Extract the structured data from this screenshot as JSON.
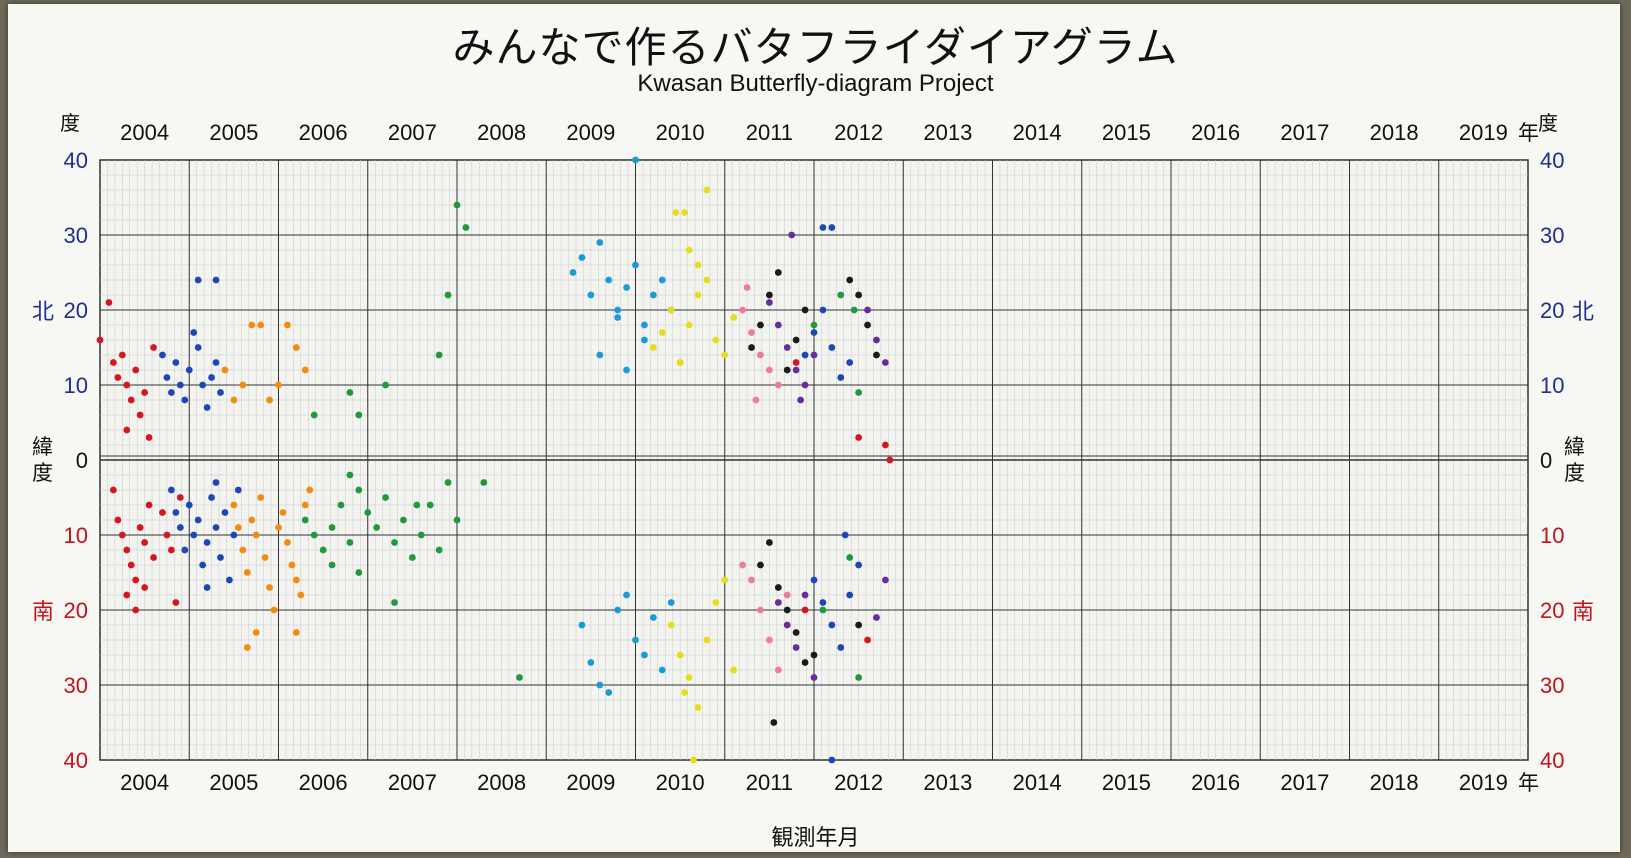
{
  "title": "みんなで作るバタフライダイアグラム",
  "subtitle": "Kwasan Butterfly-diagram Project",
  "xlabel": "観測年月",
  "year_suffix": "年",
  "degree_label": "度",
  "north_label": "北",
  "south_label": "南",
  "latitude_label": [
    "緯",
    "度"
  ],
  "colors": {
    "north_axis": "#1f2f8f",
    "south_axis": "#c0141c",
    "grid_major": "#333333",
    "grid_minor": "#c9c9c9"
  },
  "chart_data": {
    "type": "scatter",
    "title": "みんなで作るバタフライダイアグラム",
    "subtitle": "Kwasan Butterfly-diagram Project",
    "xlabel": "観測年月",
    "ylabel": "緯度",
    "xlim": [
      2004.0,
      2020.0
    ],
    "ylim": [
      -40,
      40
    ],
    "years": [
      "2004",
      "2005",
      "2006",
      "2007",
      "2008",
      "2009",
      "2010",
      "2011",
      "2012",
      "2013",
      "2014",
      "2015",
      "2016",
      "2017",
      "2018",
      "2019"
    ],
    "y_ticks_north": [
      "40",
      "30",
      "20",
      "10",
      "0"
    ],
    "y_ticks_south": [
      "10",
      "20",
      "30",
      "40"
    ],
    "grid": true,
    "series": [
      {
        "color": "#d6161e",
        "points": [
          [
            2004.0,
            16
          ],
          [
            2004.1,
            21
          ],
          [
            2004.15,
            13
          ],
          [
            2004.2,
            11
          ],
          [
            2004.25,
            14
          ],
          [
            2004.3,
            10
          ],
          [
            2004.35,
            8
          ],
          [
            2004.4,
            12
          ],
          [
            2004.45,
            6
          ],
          [
            2004.5,
            9
          ],
          [
            2004.55,
            3
          ],
          [
            2004.6,
            15
          ],
          [
            2004.3,
            4
          ],
          [
            2004.15,
            -4
          ],
          [
            2004.2,
            -8
          ],
          [
            2004.25,
            -10
          ],
          [
            2004.3,
            -12
          ],
          [
            2004.35,
            -14
          ],
          [
            2004.4,
            -16
          ],
          [
            2004.45,
            -9
          ],
          [
            2004.5,
            -11
          ],
          [
            2004.55,
            -6
          ],
          [
            2004.6,
            -13
          ],
          [
            2004.3,
            -18
          ],
          [
            2004.4,
            -20
          ],
          [
            2004.5,
            -17
          ],
          [
            2004.7,
            -7
          ],
          [
            2004.75,
            -10
          ],
          [
            2004.8,
            -12
          ],
          [
            2004.85,
            -19
          ],
          [
            2004.9,
            -5
          ]
        ]
      },
      {
        "color": "#1d47b8",
        "points": [
          [
            2004.7,
            14
          ],
          [
            2004.75,
            11
          ],
          [
            2004.8,
            9
          ],
          [
            2004.85,
            13
          ],
          [
            2004.9,
            10
          ],
          [
            2004.95,
            8
          ],
          [
            2005.0,
            12
          ],
          [
            2005.05,
            17
          ],
          [
            2005.1,
            15
          ],
          [
            2005.15,
            10
          ],
          [
            2005.2,
            7
          ],
          [
            2005.25,
            11
          ],
          [
            2005.3,
            13
          ],
          [
            2005.35,
            9
          ],
          [
            2005.1,
            24
          ],
          [
            2005.3,
            24
          ],
          [
            2004.8,
            -4
          ],
          [
            2004.85,
            -7
          ],
          [
            2004.9,
            -9
          ],
          [
            2004.95,
            -12
          ],
          [
            2005.0,
            -6
          ],
          [
            2005.05,
            -10
          ],
          [
            2005.1,
            -8
          ],
          [
            2005.15,
            -14
          ],
          [
            2005.2,
            -11
          ],
          [
            2005.25,
            -5
          ],
          [
            2005.3,
            -9
          ],
          [
            2005.35,
            -13
          ],
          [
            2005.4,
            -7
          ],
          [
            2005.45,
            -16
          ],
          [
            2005.5,
            -10
          ],
          [
            2005.55,
            -4
          ],
          [
            2005.2,
            -17
          ],
          [
            2005.3,
            -3
          ]
        ]
      },
      {
        "color": "#f08c10",
        "points": [
          [
            2005.4,
            12
          ],
          [
            2005.5,
            8
          ],
          [
            2005.6,
            10
          ],
          [
            2005.7,
            18
          ],
          [
            2005.8,
            18
          ],
          [
            2005.9,
            8
          ],
          [
            2006.0,
            10
          ],
          [
            2006.1,
            18
          ],
          [
            2006.2,
            15
          ],
          [
            2006.3,
            12
          ],
          [
            2005.5,
            -6
          ],
          [
            2005.55,
            -9
          ],
          [
            2005.6,
            -12
          ],
          [
            2005.65,
            -15
          ],
          [
            2005.7,
            -8
          ],
          [
            2005.75,
            -10
          ],
          [
            2005.8,
            -5
          ],
          [
            2005.85,
            -13
          ],
          [
            2005.9,
            -17
          ],
          [
            2005.95,
            -20
          ],
          [
            2006.0,
            -9
          ],
          [
            2006.05,
            -7
          ],
          [
            2006.1,
            -11
          ],
          [
            2006.15,
            -14
          ],
          [
            2006.2,
            -16
          ],
          [
            2006.25,
            -18
          ],
          [
            2006.3,
            -6
          ],
          [
            2006.35,
            -4
          ],
          [
            2005.65,
            -25
          ],
          [
            2006.2,
            -23
          ],
          [
            2005.75,
            -23
          ]
        ]
      },
      {
        "color": "#1f9a3a",
        "points": [
          [
            2006.4,
            6
          ],
          [
            2006.8,
            9
          ],
          [
            2007.2,
            10
          ],
          [
            2006.9,
            6
          ],
          [
            2008.0,
            34
          ],
          [
            2008.1,
            31
          ],
          [
            2007.8,
            14
          ],
          [
            2007.9,
            22
          ],
          [
            2006.3,
            -8
          ],
          [
            2006.4,
            -10
          ],
          [
            2006.5,
            -12
          ],
          [
            2006.6,
            -9
          ],
          [
            2006.7,
            -6
          ],
          [
            2006.8,
            -11
          ],
          [
            2006.9,
            -4
          ],
          [
            2007.0,
            -7
          ],
          [
            2007.1,
            -9
          ],
          [
            2007.2,
            -5
          ],
          [
            2007.3,
            -11
          ],
          [
            2007.4,
            -8
          ],
          [
            2007.5,
            -13
          ],
          [
            2007.6,
            -10
          ],
          [
            2007.7,
            -6
          ],
          [
            2007.8,
            -12
          ],
          [
            2007.9,
            -3
          ],
          [
            2008.0,
            -8
          ],
          [
            2008.3,
            -3
          ],
          [
            2006.8,
            -2
          ],
          [
            2006.9,
            -15
          ],
          [
            2007.3,
            -19
          ],
          [
            2007.55,
            -6
          ],
          [
            2006.6,
            -14
          ],
          [
            2008.7,
            -29
          ]
        ]
      },
      {
        "color": "#1a9ad6",
        "points": [
          [
            2009.3,
            25
          ],
          [
            2009.4,
            27
          ],
          [
            2009.5,
            22
          ],
          [
            2009.6,
            29
          ],
          [
            2009.7,
            24
          ],
          [
            2009.8,
            20
          ],
          [
            2009.9,
            23
          ],
          [
            2010.0,
            26
          ],
          [
            2010.1,
            18
          ],
          [
            2010.2,
            22
          ],
          [
            2010.3,
            24
          ],
          [
            2010.4,
            20
          ],
          [
            2010.0,
            40
          ],
          [
            2009.6,
            14
          ],
          [
            2009.9,
            12
          ],
          [
            2009.8,
            19
          ],
          [
            2010.1,
            16
          ],
          [
            2009.4,
            -22
          ],
          [
            2009.5,
            -27
          ],
          [
            2009.7,
            -31
          ],
          [
            2009.8,
            -20
          ],
          [
            2009.9,
            -18
          ],
          [
            2010.0,
            -24
          ],
          [
            2010.1,
            -26
          ],
          [
            2010.2,
            -21
          ],
          [
            2010.3,
            -28
          ],
          [
            2010.4,
            -19
          ],
          [
            2009.6,
            -30
          ]
        ]
      },
      {
        "color": "#e8dc1e",
        "points": [
          [
            2010.2,
            15
          ],
          [
            2010.3,
            17
          ],
          [
            2010.4,
            20
          ],
          [
            2010.5,
            13
          ],
          [
            2010.6,
            18
          ],
          [
            2010.7,
            22
          ],
          [
            2010.8,
            24
          ],
          [
            2010.9,
            16
          ],
          [
            2011.0,
            14
          ],
          [
            2011.1,
            19
          ],
          [
            2010.45,
            33
          ],
          [
            2010.55,
            33
          ],
          [
            2010.8,
            36
          ],
          [
            2010.6,
            28
          ],
          [
            2010.7,
            26
          ],
          [
            2010.4,
            -22
          ],
          [
            2010.5,
            -26
          ],
          [
            2010.6,
            -29
          ],
          [
            2010.7,
            -33
          ],
          [
            2010.8,
            -24
          ],
          [
            2010.9,
            -19
          ],
          [
            2011.0,
            -16
          ],
          [
            2011.1,
            -28
          ],
          [
            2010.65,
            -40
          ],
          [
            2010.55,
            -31
          ]
        ]
      },
      {
        "color": "#ef7a9a",
        "points": [
          [
            2011.2,
            20
          ],
          [
            2011.3,
            17
          ],
          [
            2011.4,
            14
          ],
          [
            2011.5,
            12
          ],
          [
            2011.6,
            10
          ],
          [
            2011.25,
            23
          ],
          [
            2011.35,
            8
          ],
          [
            2011.2,
            -14
          ],
          [
            2011.3,
            -16
          ],
          [
            2011.4,
            -20
          ],
          [
            2011.5,
            -24
          ],
          [
            2011.6,
            -28
          ],
          [
            2011.7,
            -18
          ]
        ]
      },
      {
        "color": "#1a1a1a",
        "points": [
          [
            2011.3,
            15
          ],
          [
            2011.4,
            18
          ],
          [
            2011.5,
            22
          ],
          [
            2011.6,
            25
          ],
          [
            2011.7,
            12
          ],
          [
            2011.8,
            16
          ],
          [
            2011.9,
            20
          ],
          [
            2012.4,
            24
          ],
          [
            2012.5,
            22
          ],
          [
            2012.6,
            18
          ],
          [
            2012.7,
            14
          ],
          [
            2011.4,
            -14
          ],
          [
            2011.5,
            -11
          ],
          [
            2011.6,
            -17
          ],
          [
            2011.7,
            -20
          ],
          [
            2011.8,
            -23
          ],
          [
            2011.9,
            -27
          ],
          [
            2012.0,
            -26
          ],
          [
            2011.55,
            -35
          ],
          [
            2012.5,
            -22
          ]
        ]
      },
      {
        "color": "#6a2b9e",
        "points": [
          [
            2011.5,
            21
          ],
          [
            2011.6,
            18
          ],
          [
            2011.7,
            15
          ],
          [
            2011.8,
            12
          ],
          [
            2011.9,
            10
          ],
          [
            2012.0,
            14
          ],
          [
            2011.75,
            30
          ],
          [
            2011.85,
            8
          ],
          [
            2012.6,
            20
          ],
          [
            2012.7,
            16
          ],
          [
            2012.8,
            13
          ],
          [
            2011.6,
            -19
          ],
          [
            2011.7,
            -22
          ],
          [
            2011.8,
            -25
          ],
          [
            2011.9,
            -18
          ],
          [
            2012.0,
            -29
          ],
          [
            2012.7,
            -21
          ],
          [
            2012.8,
            -16
          ]
        ]
      },
      {
        "color": "#1d47b8",
        "points": [
          [
            2011.9,
            14
          ],
          [
            2012.0,
            17
          ],
          [
            2012.1,
            20
          ],
          [
            2012.2,
            15
          ],
          [
            2012.3,
            11
          ],
          [
            2012.4,
            13
          ],
          [
            2012.1,
            31
          ],
          [
            2012.2,
            31
          ],
          [
            2012.0,
            -16
          ],
          [
            2012.1,
            -19
          ],
          [
            2012.2,
            -22
          ],
          [
            2012.3,
            -25
          ],
          [
            2012.4,
            -18
          ],
          [
            2012.5,
            -14
          ],
          [
            2012.2,
            -40
          ],
          [
            2012.35,
            -10
          ]
        ]
      },
      {
        "color": "#1f9a3a",
        "points": [
          [
            2012.0,
            18
          ],
          [
            2012.3,
            22
          ],
          [
            2012.45,
            20
          ],
          [
            2012.5,
            9
          ],
          [
            2012.1,
            -20
          ],
          [
            2012.4,
            -13
          ],
          [
            2012.5,
            -29
          ]
        ]
      },
      {
        "color": "#d6161e",
        "points": [
          [
            2011.8,
            13
          ],
          [
            2012.5,
            3
          ],
          [
            2012.8,
            2
          ],
          [
            2012.85,
            0
          ],
          [
            2011.9,
            -20
          ],
          [
            2012.6,
            -24
          ]
        ]
      }
    ]
  }
}
